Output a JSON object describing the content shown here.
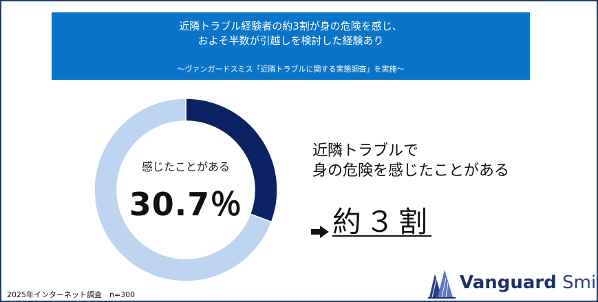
{
  "banner": {
    "headline_line1": "近隣トラブル経験者の約3割が身の危険を感じ、",
    "headline_line2": "およそ半数が引越しを検討した経験あり",
    "subtitle": "〜ヴァンガードスミス「近隣トラブルに関する実態調査」を実施〜",
    "background_color": "#0a74c9"
  },
  "chart_data": {
    "type": "pie",
    "variant": "donut",
    "categories": [
      "感じたことがある",
      ""
    ],
    "values": [
      30.7,
      69.3
    ],
    "colors": [
      "#0b2263",
      "#bcd4ef"
    ],
    "center_label": "感じたことがある",
    "center_value": "30.7％"
  },
  "description": {
    "line1": "近隣トラブルで",
    "line2": "身の危険を感じたことがある"
  },
  "result": {
    "arrow_icon": "right-arrow-icon",
    "text": "約３割"
  },
  "footnote": "2025年インターネット調査　n=300",
  "logo": {
    "word1": "Vanguard",
    "word2": "Smith",
    "color": "#1f2f6b"
  }
}
